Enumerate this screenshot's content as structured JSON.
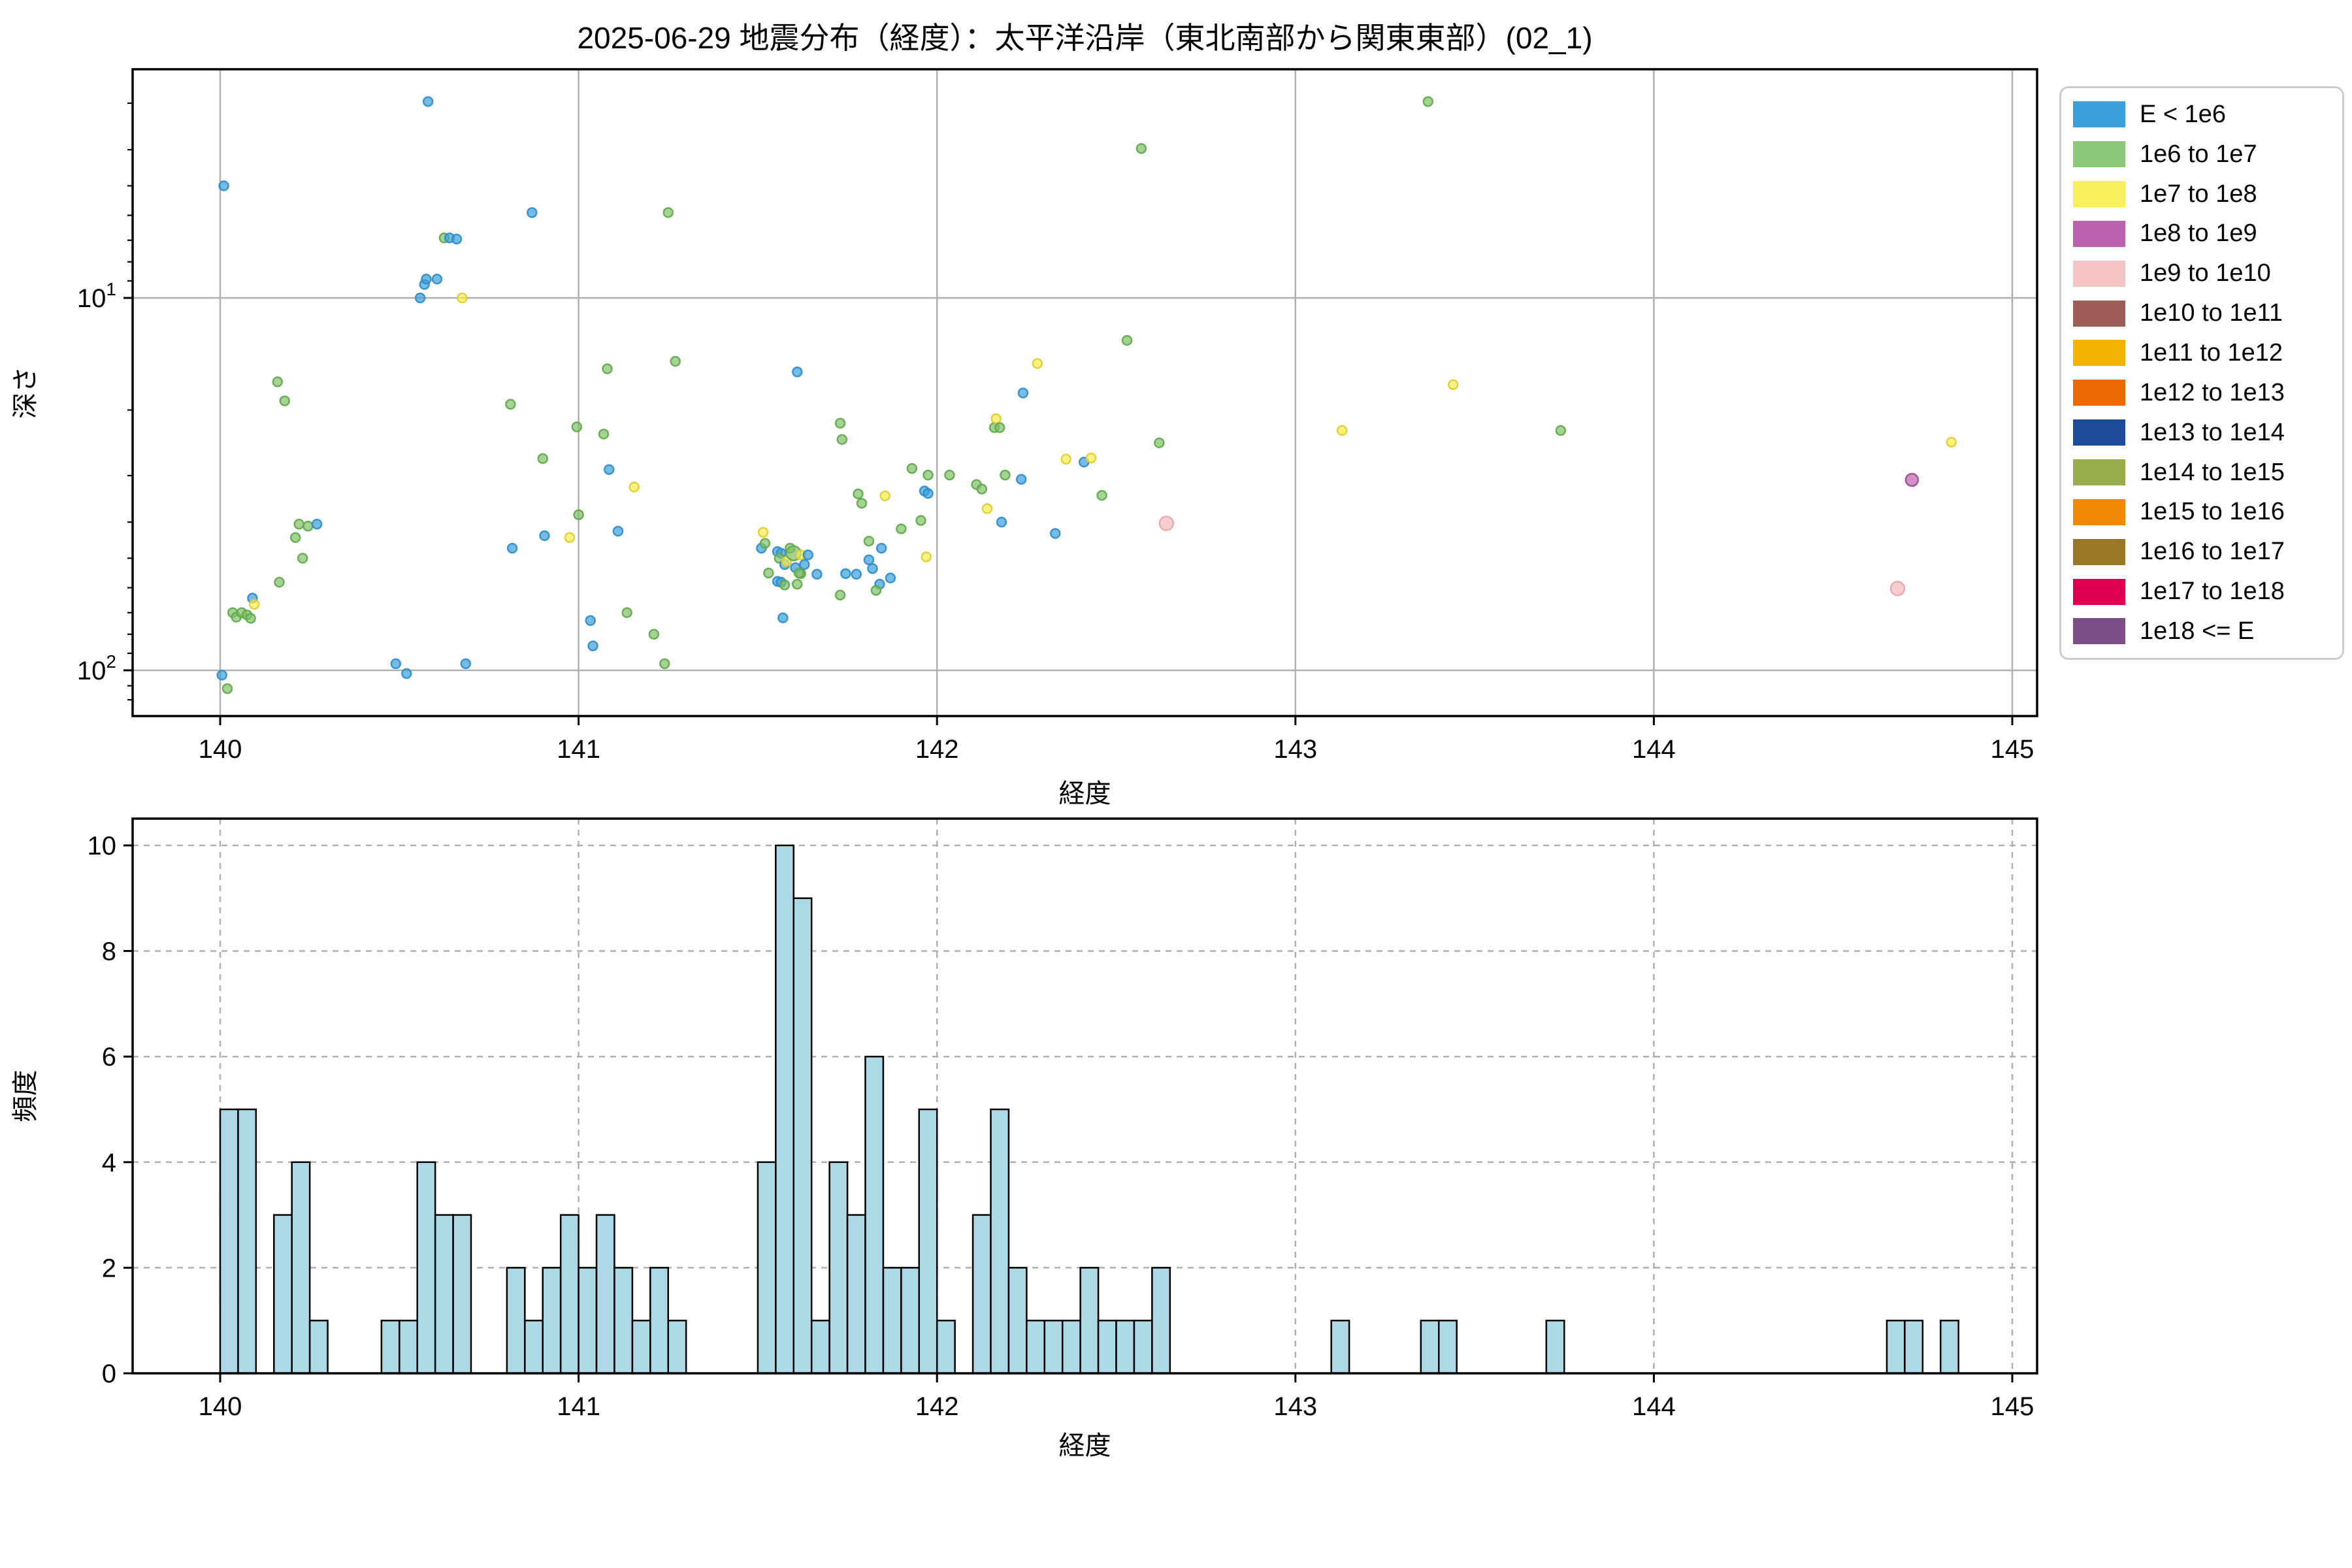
{
  "title": "2025-06-29 地震分布（経度）：太平洋沿岸（東北南部から関東東部）(02_1)",
  "legend": {
    "entries": [
      {
        "label": "E < 1e6",
        "color": "#3A9FDA"
      },
      {
        "label": "1e6 to 1e7",
        "color": "#8CC97D"
      },
      {
        "label": "1e7 to 1e8",
        "color": "#F7EF5B"
      },
      {
        "label": "1e8 to 1e9",
        "color": "#BD61AE"
      },
      {
        "label": "1e9 to 1e10",
        "color": "#F6C3C5"
      },
      {
        "label": "1e10 to 1e11",
        "color": "#9C5B54"
      },
      {
        "label": "1e11 to 1e12",
        "color": "#F4B301"
      },
      {
        "label": "1e12 to 1e13",
        "color": "#EB6A02"
      },
      {
        "label": "1e13 to 1e14",
        "color": "#1C4C9A"
      },
      {
        "label": "1e14 to 1e15",
        "color": "#9AAD4D"
      },
      {
        "label": "1e15 to 1e16",
        "color": "#F28802"
      },
      {
        "label": "1e16 to 1e17",
        "color": "#9A7727"
      },
      {
        "label": "1e17 to 1e18",
        "color": "#DF0050"
      },
      {
        "label": "1e18 <= E",
        "color": "#7B4E88"
      }
    ]
  },
  "colors": {
    "point_classes": [
      "#3A9FDA",
      "#7FC168",
      "#F5EC4D",
      "#BD61AE",
      "#F3B9BC"
    ],
    "point_strokes": [
      "#2F8CC8",
      "#5FA949",
      "#E0CC2E",
      "#9D4792",
      "#EBA4A9"
    ],
    "hist_fill": "#ADD8E6",
    "hist_edge": "#000000",
    "grid": "#B0B0B0",
    "spine": "#000000"
  },
  "chart_data": [
    {
      "type": "scatter",
      "title": "2025-06-29 地震分布（経度）：太平洋沿岸（東北南部から関東東部）(02_1)",
      "xlabel": "経度",
      "ylabel": "深さ",
      "xlim": [
        139.76,
        145.07
      ],
      "ylim_depth": [
        2.43,
        132
      ],
      "yscale": "log-inverted",
      "xticks": [
        "140",
        "141",
        "142",
        "143",
        "144",
        "145"
      ],
      "ytick_base": "10",
      "ytick_exponents": [
        "1",
        "2"
      ],
      "minor_tick_depths": [
        3,
        4,
        5,
        6,
        7,
        8,
        9,
        20,
        30,
        40,
        50,
        60,
        70,
        80,
        90,
        110,
        120
      ],
      "legend_position": "upper right outside",
      "grid": "solid",
      "class_names": [
        "E < 1e6",
        "1e6 to 1e7",
        "1e7 to 1e8",
        "1e8 to 1e9",
        "1e9 to 1e10"
      ],
      "points": [
        [
          140.005,
          103,
          0
        ],
        [
          140.02,
          112,
          1
        ],
        [
          140.01,
          5.0,
          0
        ],
        [
          140.035,
          70,
          1
        ],
        [
          140.045,
          72,
          1
        ],
        [
          140.06,
          70,
          1
        ],
        [
          140.075,
          71,
          1
        ],
        [
          140.085,
          72.5,
          1
        ],
        [
          140.09,
          64,
          0
        ],
        [
          140.095,
          66.5,
          2
        ],
        [
          140.16,
          16.8,
          1
        ],
        [
          140.18,
          18.9,
          1
        ],
        [
          140.165,
          58,
          1
        ],
        [
          140.21,
          44,
          1
        ],
        [
          140.22,
          40.5,
          1
        ],
        [
          140.245,
          41,
          1
        ],
        [
          140.23,
          50,
          1
        ],
        [
          140.27,
          40.5,
          0
        ],
        [
          140.49,
          96,
          0
        ],
        [
          140.52,
          102,
          0
        ],
        [
          140.558,
          10.0,
          0
        ],
        [
          140.57,
          9.2,
          0
        ],
        [
          140.575,
          8.9,
          0
        ],
        [
          140.58,
          2.97,
          0
        ],
        [
          140.605,
          8.9,
          0
        ],
        [
          140.625,
          6.9,
          1
        ],
        [
          140.64,
          6.9,
          0
        ],
        [
          140.66,
          6.95,
          0
        ],
        [
          140.675,
          10.0,
          2
        ],
        [
          140.685,
          96,
          0
        ],
        [
          140.81,
          19.3,
          1
        ],
        [
          140.815,
          47,
          0
        ],
        [
          140.87,
          5.9,
          0
        ],
        [
          140.9,
          27,
          1
        ],
        [
          140.905,
          43.5,
          0
        ],
        [
          140.975,
          44,
          2
        ],
        [
          140.995,
          22.2,
          1
        ],
        [
          141.0,
          38.2,
          1
        ],
        [
          141.033,
          73.5,
          0
        ],
        [
          141.04,
          86,
          0
        ],
        [
          141.07,
          23.2,
          1
        ],
        [
          141.08,
          15.5,
          1
        ],
        [
          141.085,
          28.9,
          0
        ],
        [
          141.11,
          42.3,
          0
        ],
        [
          141.135,
          70,
          1
        ],
        [
          141.155,
          32.2,
          2
        ],
        [
          141.21,
          80,
          1
        ],
        [
          141.24,
          96,
          1
        ],
        [
          141.25,
          5.9,
          1
        ],
        [
          141.27,
          14.8,
          1
        ],
        [
          141.51,
          47,
          0
        ],
        [
          141.515,
          42.6,
          2
        ],
        [
          141.52,
          45.6,
          1
        ],
        [
          141.53,
          54.8,
          1
        ],
        [
          141.555,
          48,
          0
        ],
        [
          141.565,
          48.5,
          0
        ],
        [
          141.555,
          57.7,
          0
        ],
        [
          141.565,
          58,
          0
        ],
        [
          141.56,
          50,
          1
        ],
        [
          141.575,
          52,
          0
        ],
        [
          141.59,
          47,
          1
        ],
        [
          141.58,
          51,
          2
        ],
        [
          141.575,
          59,
          1
        ],
        [
          141.57,
          72.3,
          0
        ],
        [
          141.6,
          48.5,
          1,
          11
        ],
        [
          141.62,
          49,
          2
        ],
        [
          141.61,
          58.7,
          1
        ],
        [
          141.61,
          15.8,
          0
        ],
        [
          141.62,
          55,
          1
        ],
        [
          141.63,
          52,
          0
        ],
        [
          141.605,
          53,
          0
        ],
        [
          141.615,
          54.8,
          1
        ],
        [
          141.64,
          49,
          0
        ],
        [
          141.665,
          55.2,
          0
        ],
        [
          141.73,
          21.7,
          1
        ],
        [
          141.735,
          24,
          1
        ],
        [
          141.73,
          62.8,
          1
        ],
        [
          141.745,
          55,
          0
        ],
        [
          141.78,
          33.6,
          1
        ],
        [
          141.79,
          35.6,
          1
        ],
        [
          141.775,
          55.2,
          0
        ],
        [
          141.81,
          50.5,
          0
        ],
        [
          141.82,
          53.3,
          0
        ],
        [
          141.84,
          58.7,
          0
        ],
        [
          141.83,
          61,
          1
        ],
        [
          141.81,
          45,
          1
        ],
        [
          141.845,
          47,
          0
        ],
        [
          141.855,
          34,
          2
        ],
        [
          141.87,
          56.5,
          0
        ],
        [
          141.9,
          41.7,
          1
        ],
        [
          141.93,
          28.7,
          1
        ],
        [
          141.955,
          39.6,
          1
        ],
        [
          141.965,
          33,
          0
        ],
        [
          141.975,
          33.5,
          0
        ],
        [
          141.975,
          29.9,
          1
        ],
        [
          141.97,
          49.6,
          2
        ],
        [
          142.035,
          29.9,
          1
        ],
        [
          142.11,
          31.7,
          1
        ],
        [
          142.125,
          32.6,
          1
        ],
        [
          142.14,
          36.8,
          2
        ],
        [
          142.16,
          22.3,
          1
        ],
        [
          142.165,
          21.1,
          2
        ],
        [
          142.175,
          22.3,
          1
        ],
        [
          142.18,
          40,
          0
        ],
        [
          142.19,
          29.9,
          1
        ],
        [
          142.235,
          30.7,
          0
        ],
        [
          142.24,
          18,
          0
        ],
        [
          142.28,
          15,
          2
        ],
        [
          142.33,
          42.9,
          0
        ],
        [
          142.36,
          27.1,
          2
        ],
        [
          142.41,
          27.6,
          0
        ],
        [
          142.43,
          26.9,
          2
        ],
        [
          142.46,
          33.9,
          1
        ],
        [
          142.53,
          13,
          1
        ],
        [
          142.57,
          3.97,
          1
        ],
        [
          142.62,
          24.5,
          1
        ],
        [
          142.64,
          40.3,
          4,
          10.5
        ],
        [
          143.13,
          22.7,
          2
        ],
        [
          143.37,
          2.97,
          1
        ],
        [
          143.44,
          17.1,
          2
        ],
        [
          143.74,
          22.7,
          1
        ],
        [
          144.68,
          60.3,
          4,
          10.5
        ],
        [
          144.72,
          30.8,
          3,
          9.5
        ],
        [
          144.83,
          24.4,
          2
        ]
      ]
    },
    {
      "type": "bar",
      "xlabel": "経度",
      "ylabel": "頻度",
      "xlim": [
        139.76,
        145.07
      ],
      "ylim": [
        0,
        10.5
      ],
      "xticks": [
        "140",
        "141",
        "142",
        "143",
        "144",
        "145"
      ],
      "yticks": [
        "0",
        "2",
        "4",
        "6",
        "8",
        "10"
      ],
      "grid": "dashed",
      "bin_width": 0.05,
      "bars": [
        [
          140.0,
          5
        ],
        [
          140.05,
          5
        ],
        [
          140.15,
          3
        ],
        [
          140.2,
          4
        ],
        [
          140.25,
          1
        ],
        [
          140.45,
          1
        ],
        [
          140.5,
          1
        ],
        [
          140.55,
          4
        ],
        [
          140.6,
          3
        ],
        [
          140.65,
          3
        ],
        [
          140.8,
          2
        ],
        [
          140.85,
          1
        ],
        [
          140.9,
          2
        ],
        [
          140.95,
          3
        ],
        [
          141.0,
          2
        ],
        [
          141.05,
          3
        ],
        [
          141.1,
          2
        ],
        [
          141.15,
          1
        ],
        [
          141.2,
          2
        ],
        [
          141.25,
          1
        ],
        [
          141.5,
          4
        ],
        [
          141.55,
          10
        ],
        [
          141.6,
          9
        ],
        [
          141.65,
          1
        ],
        [
          141.7,
          4
        ],
        [
          141.75,
          3
        ],
        [
          141.8,
          6
        ],
        [
          141.85,
          2
        ],
        [
          141.9,
          2
        ],
        [
          141.95,
          5
        ],
        [
          142.0,
          1
        ],
        [
          142.1,
          3
        ],
        [
          142.15,
          5
        ],
        [
          142.2,
          2
        ],
        [
          142.25,
          1
        ],
        [
          142.3,
          1
        ],
        [
          142.35,
          1
        ],
        [
          142.4,
          2
        ],
        [
          142.45,
          1
        ],
        [
          142.5,
          1
        ],
        [
          142.55,
          1
        ],
        [
          142.6,
          2
        ],
        [
          143.1,
          1
        ],
        [
          143.35,
          1
        ],
        [
          143.4,
          1
        ],
        [
          143.7,
          1
        ],
        [
          144.65,
          1
        ],
        [
          144.7,
          1
        ],
        [
          144.8,
          1
        ]
      ]
    }
  ]
}
